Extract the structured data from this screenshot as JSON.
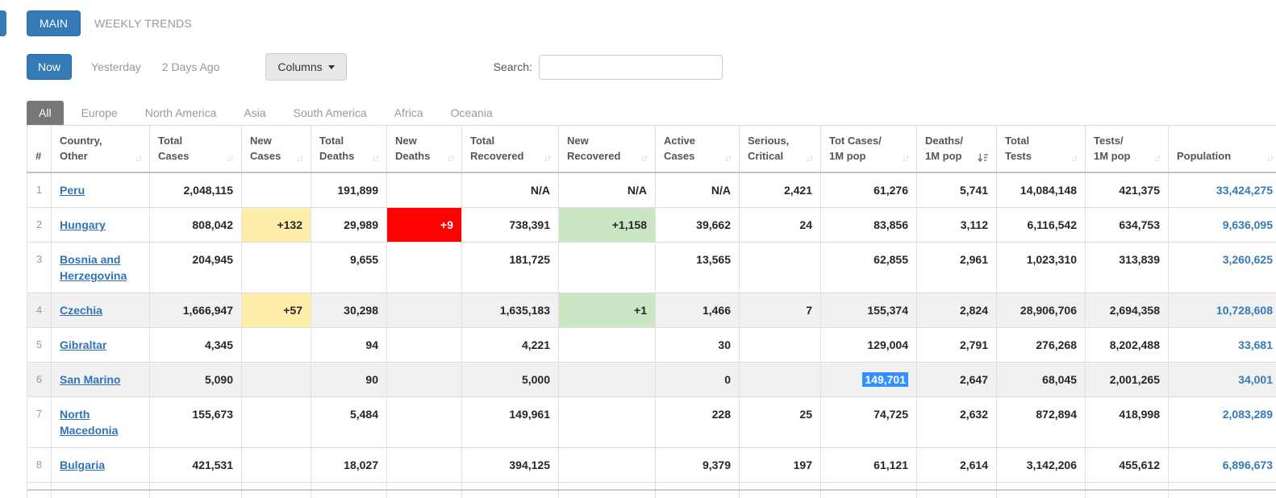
{
  "view_tabs": {
    "main": "MAIN",
    "weekly_trends": "WEEKLY TRENDS"
  },
  "toolbar": {
    "now": "Now",
    "yesterday": "Yesterday",
    "two_days_ago": "2 Days Ago",
    "columns_button": "Columns",
    "search_label": "Search:",
    "search_value": "",
    "search_placeholder": ""
  },
  "continent_tabs": {
    "active": "All",
    "items": [
      "All",
      "Europe",
      "North America",
      "Asia",
      "South America",
      "Africa",
      "Oceania"
    ]
  },
  "icons": {
    "columns_caret": "caret-down",
    "sort_inactive": "sort-both-arrows",
    "sort_active": "sort-amount-desc"
  },
  "colors": {
    "accent_blue": "#337ab7",
    "active_continent_tab": "#777777",
    "new_cases_bg": "#FFEEAA",
    "new_deaths_bg": "#FF0000",
    "new_recovered_bg": "#CBE6C4",
    "selection_bg": "#3390FF",
    "link_blue": "#3073b6"
  },
  "table": {
    "columns": [
      {
        "key": "num",
        "lines": [
          "#"
        ],
        "sort": null
      },
      {
        "key": "country",
        "lines": [
          "Country,",
          "Other"
        ],
        "sort": "unsorted"
      },
      {
        "key": "total_cases",
        "lines": [
          "Total",
          "Cases"
        ],
        "sort": "unsorted"
      },
      {
        "key": "new_cases",
        "lines": [
          "New",
          "Cases"
        ],
        "sort": "unsorted"
      },
      {
        "key": "total_deaths",
        "lines": [
          "Total",
          "Deaths"
        ],
        "sort": "unsorted"
      },
      {
        "key": "new_deaths",
        "lines": [
          "New",
          "Deaths"
        ],
        "sort": "unsorted"
      },
      {
        "key": "total_recovered",
        "lines": [
          "Total",
          "Recovered"
        ],
        "sort": "unsorted"
      },
      {
        "key": "new_recovered",
        "lines": [
          "New",
          "Recovered"
        ],
        "sort": "unsorted"
      },
      {
        "key": "active_cases",
        "lines": [
          "Active",
          "Cases"
        ],
        "sort": "unsorted"
      },
      {
        "key": "serious_critical",
        "lines": [
          "Serious,",
          "Critical"
        ],
        "sort": "unsorted"
      },
      {
        "key": "cases_per_1m",
        "lines": [
          "Tot Cases/",
          "1M pop"
        ],
        "sort": "unsorted"
      },
      {
        "key": "deaths_per_1m",
        "lines": [
          "Deaths/",
          "1M pop"
        ],
        "sort": "desc"
      },
      {
        "key": "total_tests",
        "lines": [
          "Total",
          "Tests"
        ],
        "sort": "unsorted"
      },
      {
        "key": "tests_per_1m",
        "lines": [
          "Tests/",
          "1M pop"
        ],
        "sort": "unsorted"
      },
      {
        "key": "population",
        "lines": [
          "Population"
        ],
        "sort": "unsorted"
      }
    ],
    "rows": [
      {
        "num": "1",
        "country": "Peru",
        "total_cases": "2,048,115",
        "new_cases": "",
        "total_deaths": "191,899",
        "new_deaths": "",
        "total_recovered": "N/A",
        "new_recovered": "N/A",
        "active_cases": "N/A",
        "serious_critical": "2,421",
        "cases_per_1m": "61,276",
        "deaths_per_1m": "5,741",
        "total_tests": "14,084,148",
        "tests_per_1m": "421,375",
        "population": "33,424,275",
        "shaded": false,
        "selected_cell": null
      },
      {
        "num": "2",
        "country": "Hungary",
        "total_cases": "808,042",
        "new_cases": "+132",
        "total_deaths": "29,989",
        "new_deaths": "+9",
        "total_recovered": "738,391",
        "new_recovered": "+1,158",
        "active_cases": "39,662",
        "serious_critical": "24",
        "cases_per_1m": "83,856",
        "deaths_per_1m": "3,112",
        "total_tests": "6,116,542",
        "tests_per_1m": "634,753",
        "population": "9,636,095",
        "shaded": false,
        "selected_cell": null
      },
      {
        "num": "3",
        "country": "Bosnia and Herzegovina",
        "total_cases": "204,945",
        "new_cases": "",
        "total_deaths": "9,655",
        "new_deaths": "",
        "total_recovered": "181,725",
        "new_recovered": "",
        "active_cases": "13,565",
        "serious_critical": "",
        "cases_per_1m": "62,855",
        "deaths_per_1m": "2,961",
        "total_tests": "1,023,310",
        "tests_per_1m": "313,839",
        "population": "3,260,625",
        "shaded": false,
        "selected_cell": null
      },
      {
        "num": "4",
        "country": "Czechia",
        "total_cases": "1,666,947",
        "new_cases": "+57",
        "total_deaths": "30,298",
        "new_deaths": "",
        "total_recovered": "1,635,183",
        "new_recovered": "+1",
        "active_cases": "1,466",
        "serious_critical": "7",
        "cases_per_1m": "155,374",
        "deaths_per_1m": "2,824",
        "total_tests": "28,906,706",
        "tests_per_1m": "2,694,358",
        "population": "10,728,608",
        "shaded": true,
        "selected_cell": null
      },
      {
        "num": "5",
        "country": "Gibraltar",
        "total_cases": "4,345",
        "new_cases": "",
        "total_deaths": "94",
        "new_deaths": "",
        "total_recovered": "4,221",
        "new_recovered": "",
        "active_cases": "30",
        "serious_critical": "",
        "cases_per_1m": "129,004",
        "deaths_per_1m": "2,791",
        "total_tests": "276,268",
        "tests_per_1m": "8,202,488",
        "population": "33,681",
        "shaded": false,
        "selected_cell": null
      },
      {
        "num": "6",
        "country": "San Marino",
        "total_cases": "5,090",
        "new_cases": "",
        "total_deaths": "90",
        "new_deaths": "",
        "total_recovered": "5,000",
        "new_recovered": "",
        "active_cases": "0",
        "serious_critical": "",
        "cases_per_1m": "149,701",
        "deaths_per_1m": "2,647",
        "total_tests": "68,045",
        "tests_per_1m": "2,001,265",
        "population": "34,001",
        "shaded": true,
        "selected_cell": "cases_per_1m"
      },
      {
        "num": "7",
        "country": "North Macedonia",
        "total_cases": "155,673",
        "new_cases": "",
        "total_deaths": "5,484",
        "new_deaths": "",
        "total_recovered": "149,961",
        "new_recovered": "",
        "active_cases": "228",
        "serious_critical": "25",
        "cases_per_1m": "74,725",
        "deaths_per_1m": "2,632",
        "total_tests": "872,894",
        "tests_per_1m": "418,998",
        "population": "2,083,289",
        "shaded": false,
        "selected_cell": null
      },
      {
        "num": "8",
        "country": "Bulgaria",
        "total_cases": "421,531",
        "new_cases": "",
        "total_deaths": "18,027",
        "new_deaths": "",
        "total_recovered": "394,125",
        "new_recovered": "",
        "active_cases": "9,379",
        "serious_critical": "197",
        "cases_per_1m": "61,121",
        "deaths_per_1m": "2,614",
        "total_tests": "3,142,206",
        "tests_per_1m": "455,612",
        "population": "6,896,673",
        "shaded": false,
        "selected_cell": null
      }
    ]
  }
}
